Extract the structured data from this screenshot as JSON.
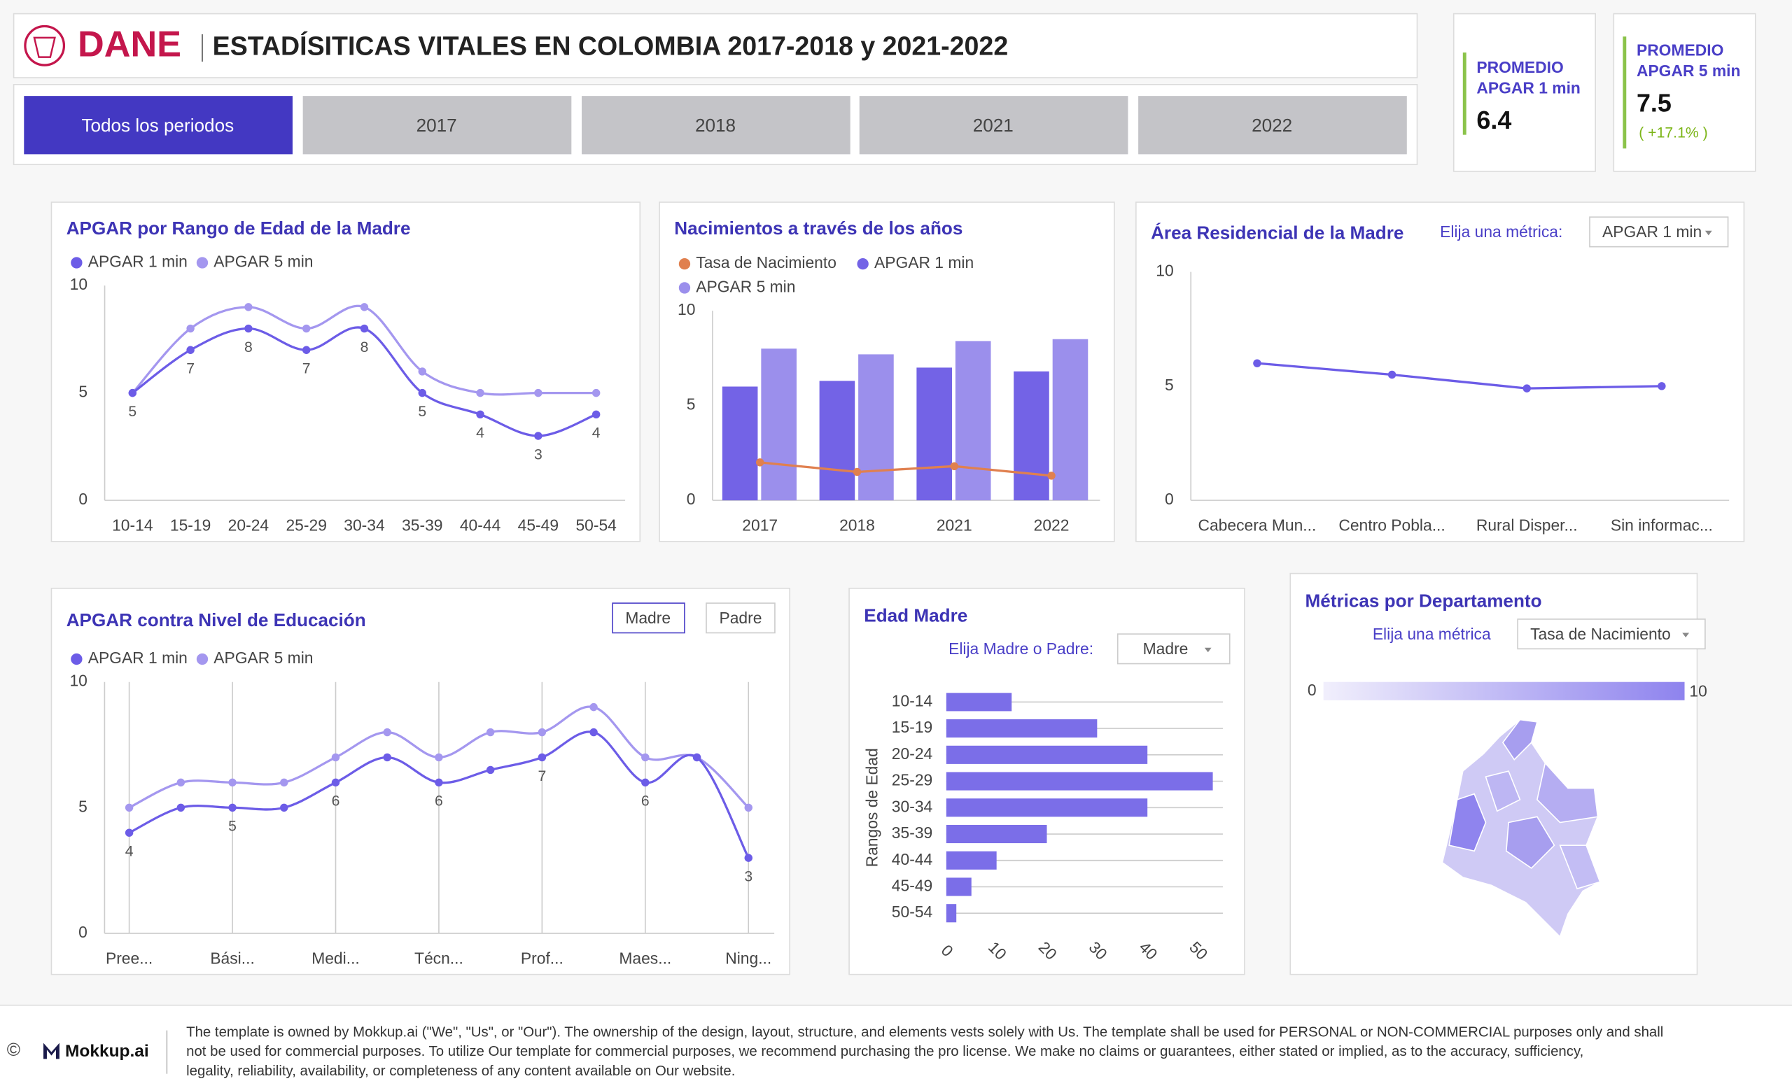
{
  "header": {
    "logo": "DANE",
    "title": "ESTADÍSITICAS VITALES EN COLOMBIA 2017-2018 y 2021-2022"
  },
  "tabs": [
    "Todos los periodos",
    "2017",
    "2018",
    "2021",
    "2022"
  ],
  "kpis": [
    {
      "label": [
        "PROMEDIO",
        "APGAR 1 min"
      ],
      "value": "6.4"
    },
    {
      "label": [
        "PROMEDIO",
        "APGAR 5 min"
      ],
      "value": "7.5",
      "delta": "( +17.1% )"
    }
  ],
  "chart_data": [
    {
      "type": "line",
      "title": "APGAR por Rango de Edad de la Madre",
      "categories": [
        "10-14",
        "15-19",
        "20-24",
        "25-29",
        "30-34",
        "35-39",
        "40-44",
        "45-49",
        "50-54"
      ],
      "series": [
        {
          "name": "APGAR 1 min",
          "color": "#6c5ce7",
          "values": [
            5,
            7,
            8,
            7,
            8,
            5,
            4,
            3,
            4
          ],
          "labels": true
        },
        {
          "name": "APGAR 5 min",
          "color": "#a497ef",
          "values": [
            5,
            8,
            9,
            8,
            9,
            6,
            5,
            5,
            5
          ]
        }
      ],
      "ylim": [
        0,
        10
      ],
      "yticks": [
        0,
        5,
        10
      ]
    },
    {
      "type": "bar",
      "title": "Nacimientos a través de los años",
      "categories": [
        "2017",
        "2018",
        "2021",
        "2022"
      ],
      "series": [
        {
          "name": "Tasa de Nacimiento",
          "color": "#e0804f",
          "type": "line",
          "values": [
            2.0,
            1.5,
            1.8,
            1.3
          ]
        },
        {
          "name": "APGAR 1 min",
          "color": "#7363e6",
          "values": [
            6.0,
            6.3,
            7.0,
            6.8
          ]
        },
        {
          "name": "APGAR 5 min",
          "color": "#9b8fec",
          "values": [
            8.0,
            7.7,
            8.4,
            8.5
          ]
        }
      ],
      "ylim": [
        0,
        10
      ],
      "yticks": [
        0,
        5,
        10
      ]
    },
    {
      "type": "line",
      "title": "Área Residencial de la Madre",
      "control": "Elija una métrica:",
      "dropdown": "APGAR 1 min",
      "categories": [
        "Cabecera Mun...",
        "Centro Pobla...",
        "Rural Disper...",
        "Sin informac..."
      ],
      "series": [
        {
          "name": "APGAR 1 min",
          "color": "#6c5ce7",
          "values": [
            6.0,
            5.5,
            4.9,
            5.0
          ]
        }
      ],
      "ylim": [
        0,
        10
      ],
      "yticks": [
        0,
        5,
        10
      ]
    },
    {
      "type": "line",
      "title": "APGAR contra Nivel de Educación",
      "buttons": [
        "Madre",
        "Padre"
      ],
      "categories": [
        "Pree...",
        null,
        "Bási...",
        null,
        "Medi...",
        null,
        "Técn...",
        null,
        "Prof...",
        null,
        "Maes...",
        null,
        "Ning..."
      ],
      "series": [
        {
          "name": "APGAR 1 min",
          "color": "#6c5ce7",
          "values": [
            4,
            5,
            5,
            5,
            6,
            7,
            6,
            6.5,
            7,
            8,
            6,
            7,
            3
          ],
          "labels": true
        },
        {
          "name": "APGAR 5 min",
          "color": "#a497ef",
          "values": [
            5,
            6,
            6,
            6,
            7,
            8,
            7,
            8,
            8,
            9,
            7,
            7,
            5
          ]
        }
      ],
      "ylim": [
        0,
        10
      ],
      "yticks": [
        0,
        5,
        10
      ],
      "grid": "x"
    },
    {
      "type": "hbar",
      "title": "Edad Madre",
      "control": "Elija Madre o Padre:",
      "dropdown": "Madre",
      "y_label": "Rangos de Edad",
      "categories": [
        "10-14",
        "15-19",
        "20-24",
        "25-29",
        "30-34",
        "35-39",
        "40-44",
        "45-49",
        "50-54"
      ],
      "values": [
        13,
        30,
        40,
        53,
        40,
        20,
        10,
        5,
        2
      ],
      "color": "#7b6ee8",
      "xlim": [
        0,
        55
      ],
      "xticks": [
        0,
        10,
        20,
        30,
        40,
        50
      ],
      "grid": true
    },
    {
      "type": "map",
      "title": "Métricas por Departamento",
      "control": "Elija una métrica",
      "dropdown": "Tasa de Nacimiento",
      "colorscale": {
        "min": 0,
        "max": 10,
        "colors": [
          "#f1effc",
          "#8e83ee"
        ]
      }
    }
  ],
  "footer": {
    "brand": "Mokkup.ai",
    "text": [
      "The template is owned by Mokkup.ai (\"We\", \"Us\", or \"Our\"). The ownership of the design, layout, structure, and elements vests solely with Us. The template shall be used for PERSONAL or NON-COMMERCIAL purposes only and shall",
      "not be used for commercial purposes. To utilize Our template for commercial purposes, we recommend purchasing the pro license. We make no claims or guarantees, either stated or implied, as to the accuracy, sufficiency,",
      "legality, reliability, availability, or completeness of any content available on Our website."
    ]
  }
}
